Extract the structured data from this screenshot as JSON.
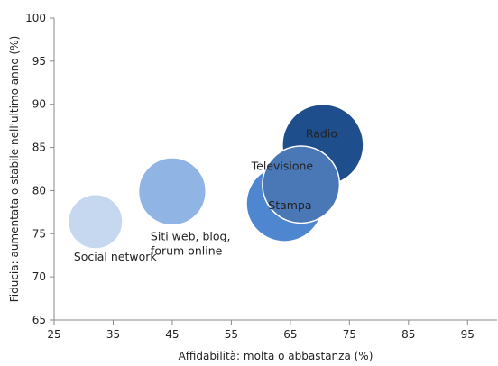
{
  "chart_data": {
    "type": "scatter",
    "subtype": "bubble",
    "title": "",
    "xlabel": "Affidabilità: molta o abbastanza (%)",
    "ylabel": "Fiducia: aumentata o stabile nell'ultimo anno (%)",
    "xlim": [
      25,
      100
    ],
    "ylim": [
      65,
      100
    ],
    "xticks": [
      25,
      35,
      45,
      55,
      65,
      75,
      85,
      95
    ],
    "yticks": [
      65,
      70,
      75,
      80,
      85,
      90,
      95,
      100
    ],
    "grid": false,
    "points": [
      {
        "name": "Radio",
        "x": 70.5,
        "y": 85.3,
        "size": 1.0,
        "color": "#1f4e8c",
        "label_lines": [
          "Radio"
        ]
      },
      {
        "name": "Stampa",
        "x": 64,
        "y": 78.5,
        "size": 0.94,
        "color": "#4f86d0",
        "label_lines": [
          "Stampa"
        ]
      },
      {
        "name": "Televisione",
        "x": 66.8,
        "y": 80.7,
        "size": 0.95,
        "color": "#4a78b6",
        "label_lines": [
          "Televisione"
        ]
      },
      {
        "name": "Siti web, blog, forum online",
        "x": 45,
        "y": 79.9,
        "size": 0.83,
        "color": "#90b4e4",
        "label_lines": [
          "Siti web, blog,",
          "forum online"
        ]
      },
      {
        "name": "Social network",
        "x": 32,
        "y": 76.4,
        "size": 0.67,
        "color": "#c6d8f0",
        "label_lines": [
          "Social network"
        ]
      }
    ]
  }
}
